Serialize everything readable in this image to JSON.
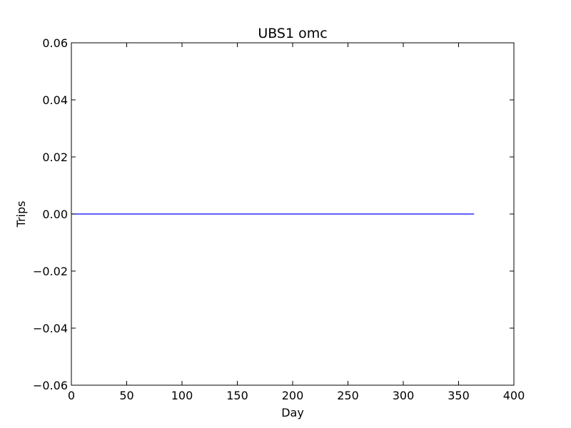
{
  "chart_data": {
    "type": "line",
    "title": "UBS1 omc",
    "xlabel": "Day",
    "ylabel": "Trips",
    "xlim": [
      0,
      400
    ],
    "ylim": [
      -0.06,
      0.06
    ],
    "x_ticks": [
      0,
      50,
      100,
      150,
      200,
      250,
      300,
      350,
      400
    ],
    "y_ticks": [
      -0.06,
      -0.04,
      -0.02,
      0.0,
      0.02,
      0.04,
      0.06
    ],
    "x_tick_labels": [
      "0",
      "50",
      "100",
      "150",
      "200",
      "250",
      "300",
      "350",
      "400"
    ],
    "y_tick_labels": [
      "−0.06",
      "−0.04",
      "−0.02",
      "0.00",
      "0.02",
      "0.04",
      "0.06"
    ],
    "grid": false,
    "series": [
      {
        "color": "#0000ff",
        "x": [
          0,
          364
        ],
        "y": [
          0,
          0
        ]
      }
    ]
  }
}
